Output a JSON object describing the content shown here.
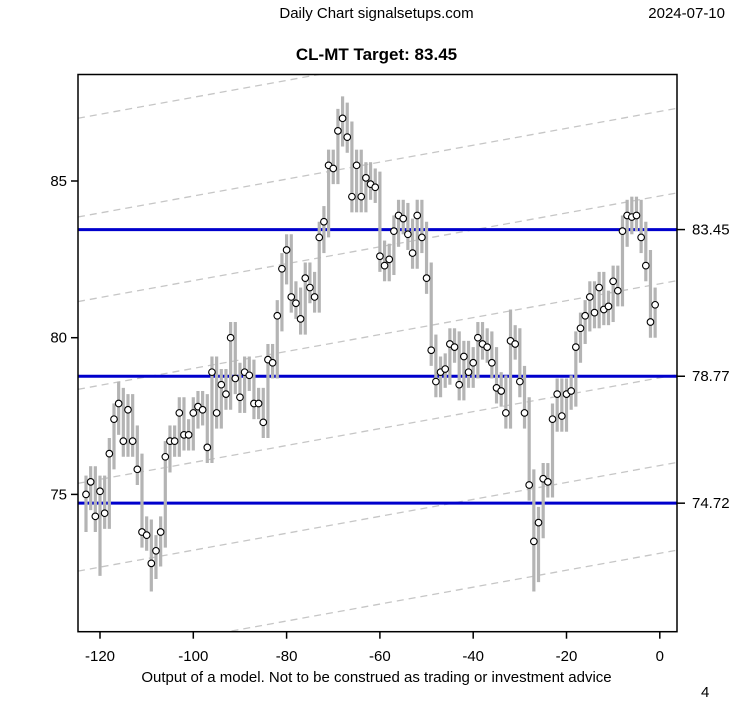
{
  "header": {
    "left_title": "Daily Chart signalsetups.com",
    "date": "2024-07-10"
  },
  "title": "CL-MT Target: 83.45",
  "footer": {
    "caption": "Output of a model. Not to be construed as trading or investment advice",
    "page_number": "4"
  },
  "chart_data": {
    "type": "bar",
    "subtype": "high-low-close daily price bars with close marked by open circle",
    "title": "CL-MT Target: 83.45",
    "xlabel": "",
    "ylabel": "",
    "x_ticks": [
      -120,
      -100,
      -80,
      -60,
      -40,
      -20,
      0
    ],
    "y_ticks": [
      75,
      80,
      85
    ],
    "xlim": [
      -124.8,
      3.6
    ],
    "ylim": [
      70.6,
      88.4
    ],
    "grid": false,
    "colors": {
      "bar": "#b4b4b4",
      "close_marker_stroke": "#000000",
      "close_marker_fill": "#ffffff",
      "target_line": "#0000cc",
      "channel_line": "#c6c6c6",
      "axis": "#000000"
    },
    "hlines": [
      {
        "value": 83.45,
        "label": "83.45",
        "color": "#0000cc"
      },
      {
        "value": 78.77,
        "label": "78.77",
        "color": "#0000cc"
      },
      {
        "value": 74.72,
        "label": "74.72",
        "color": "#0000cc"
      }
    ],
    "channel_lines": {
      "style": "dashed",
      "slope_per_day": 0.027,
      "anchor_day": -60,
      "anchor_values": [
        88.75,
        85.6,
        82.9,
        80.1,
        77.1,
        74.3,
        71.5
      ]
    },
    "bars_format": [
      "day",
      "low",
      "high",
      "close"
    ],
    "bars": [
      [
        -123,
        73.8,
        75.6,
        75.0
      ],
      [
        -122,
        74.5,
        75.9,
        75.4
      ],
      [
        -121,
        73.8,
        75.9,
        74.3
      ],
      [
        -120,
        72.4,
        75.6,
        75.1
      ],
      [
        -119,
        73.9,
        75.6,
        74.4
      ],
      [
        -118,
        73.9,
        76.8,
        76.3
      ],
      [
        -117,
        75.8,
        77.9,
        77.4
      ],
      [
        -116,
        76.9,
        78.6,
        77.9
      ],
      [
        -115,
        76.2,
        78.4,
        76.7
      ],
      [
        -114,
        76.2,
        78.2,
        77.7
      ],
      [
        -113,
        76.2,
        78.2,
        76.7
      ],
      [
        -112,
        75.3,
        77.2,
        75.8
      ],
      [
        -111,
        73.3,
        76.3,
        73.8
      ],
      [
        -110,
        73.2,
        74.3,
        73.7
      ],
      [
        -109,
        71.9,
        74.2,
        72.8
      ],
      [
        -108,
        72.3,
        73.7,
        73.2
      ],
      [
        -107,
        72.7,
        74.3,
        73.8
      ],
      [
        -106,
        73.3,
        76.7,
        76.2
      ],
      [
        -105,
        75.7,
        77.2,
        76.7
      ],
      [
        -104,
        76.2,
        77.2,
        76.7
      ],
      [
        -103,
        76.2,
        78.1,
        77.6
      ],
      [
        -102,
        76.4,
        78.1,
        76.9
      ],
      [
        -101,
        76.4,
        77.4,
        76.9
      ],
      [
        -100,
        76.4,
        78.1,
        77.6
      ],
      [
        -99,
        77.1,
        78.3,
        77.8
      ],
      [
        -98,
        77.2,
        78.3,
        77.7
      ],
      [
        -97,
        76.0,
        78.2,
        76.5
      ],
      [
        -96,
        76.0,
        79.4,
        78.9
      ],
      [
        -95,
        77.1,
        79.4,
        77.6
      ],
      [
        -94,
        77.1,
        79.0,
        78.5
      ],
      [
        -93,
        77.7,
        79.0,
        78.2
      ],
      [
        -92,
        77.7,
        80.5,
        80.0
      ],
      [
        -91,
        78.2,
        80.5,
        78.7
      ],
      [
        -90,
        77.6,
        79.2,
        78.1
      ],
      [
        -89,
        77.6,
        79.4,
        78.9
      ],
      [
        -88,
        78.3,
        79.4,
        78.8
      ],
      [
        -87,
        77.4,
        79.3,
        77.9
      ],
      [
        -86,
        77.4,
        78.4,
        77.9
      ],
      [
        -85,
        76.8,
        78.4,
        77.3
      ],
      [
        -84,
        76.8,
        79.8,
        79.3
      ],
      [
        -83,
        78.7,
        79.8,
        79.2
      ],
      [
        -82,
        78.7,
        81.2,
        80.7
      ],
      [
        -81,
        80.2,
        82.7,
        82.2
      ],
      [
        -80,
        81.7,
        83.3,
        82.8
      ],
      [
        -79,
        80.8,
        83.3,
        81.3
      ],
      [
        -78,
        80.6,
        81.8,
        81.1
      ],
      [
        -77,
        80.1,
        81.6,
        80.6
      ],
      [
        -76,
        80.1,
        82.4,
        81.9
      ],
      [
        -75,
        81.1,
        82.4,
        81.6
      ],
      [
        -74,
        80.8,
        82.1,
        81.3
      ],
      [
        -73,
        80.8,
        83.7,
        83.2
      ],
      [
        -72,
        82.7,
        84.2,
        83.7
      ],
      [
        -71,
        83.2,
        86.0,
        85.5
      ],
      [
        -70,
        84.9,
        86.0,
        85.4
      ],
      [
        -69,
        84.9,
        87.3,
        86.6
      ],
      [
        -68,
        86.1,
        87.7,
        87.0
      ],
      [
        -67,
        85.9,
        87.5,
        86.4
      ],
      [
        -66,
        84.0,
        86.9,
        84.5
      ],
      [
        -65,
        84.0,
        86.0,
        85.5
      ],
      [
        -64,
        84.0,
        86.0,
        84.5
      ],
      [
        -63,
        84.0,
        85.6,
        85.1
      ],
      [
        -62,
        84.4,
        85.6,
        84.9
      ],
      [
        -61,
        84.3,
        85.4,
        84.8
      ],
      [
        -60,
        82.1,
        85.3,
        82.6
      ],
      [
        -59,
        81.8,
        83.1,
        82.3
      ],
      [
        -58,
        81.8,
        83.0,
        82.5
      ],
      [
        -57,
        82.0,
        83.9,
        83.4
      ],
      [
        -56,
        82.9,
        84.4,
        83.9
      ],
      [
        -55,
        83.3,
        84.4,
        83.8
      ],
      [
        -54,
        82.8,
        84.3,
        83.3
      ],
      [
        -53,
        82.2,
        83.8,
        82.7
      ],
      [
        -52,
        82.2,
        84.4,
        83.9
      ],
      [
        -51,
        82.7,
        84.4,
        83.2
      ],
      [
        -50,
        81.4,
        83.7,
        81.9
      ],
      [
        -49,
        79.1,
        82.4,
        79.6
      ],
      [
        -48,
        78.1,
        80.1,
        78.6
      ],
      [
        -47,
        78.1,
        79.4,
        78.9
      ],
      [
        -46,
        78.4,
        79.5,
        79.0
      ],
      [
        -45,
        78.5,
        80.3,
        79.8
      ],
      [
        -44,
        79.2,
        80.3,
        79.7
      ],
      [
        -43,
        78.0,
        80.2,
        78.5
      ],
      [
        -42,
        78.0,
        79.9,
        79.4
      ],
      [
        -41,
        78.4,
        79.9,
        78.9
      ],
      [
        -40,
        78.4,
        79.7,
        79.2
      ],
      [
        -39,
        78.7,
        80.5,
        80.0
      ],
      [
        -38,
        79.3,
        80.5,
        79.8
      ],
      [
        -37,
        79.2,
        80.3,
        79.7
      ],
      [
        -36,
        78.7,
        80.2,
        79.2
      ],
      [
        -35,
        77.9,
        79.7,
        78.4
      ],
      [
        -34,
        77.8,
        78.9,
        78.3
      ],
      [
        -33,
        77.1,
        78.8,
        77.6
      ],
      [
        -32,
        77.1,
        80.9,
        79.9
      ],
      [
        -31,
        79.3,
        80.4,
        79.8
      ],
      [
        -30,
        78.1,
        80.3,
        78.6
      ],
      [
        -29,
        77.1,
        79.1,
        77.6
      ],
      [
        -28,
        74.8,
        78.1,
        75.3
      ],
      [
        -27,
        71.9,
        75.8,
        73.5
      ],
      [
        -26,
        72.2,
        74.6,
        74.1
      ],
      [
        -25,
        73.6,
        76.0,
        75.5
      ],
      [
        -24,
        74.9,
        76.0,
        75.4
      ],
      [
        -23,
        74.9,
        77.9,
        77.4
      ],
      [
        -22,
        77.0,
        78.7,
        78.2
      ],
      [
        -21,
        77.0,
        78.7,
        77.5
      ],
      [
        -20,
        77.0,
        78.7,
        78.2
      ],
      [
        -19,
        77.7,
        78.8,
        78.3
      ],
      [
        -18,
        77.8,
        80.2,
        79.7
      ],
      [
        -17,
        79.2,
        80.8,
        80.3
      ],
      [
        -16,
        79.8,
        81.2,
        80.7
      ],
      [
        -15,
        80.2,
        81.8,
        81.3
      ],
      [
        -14,
        80.3,
        81.8,
        80.8
      ],
      [
        -13,
        80.3,
        82.1,
        81.6
      ],
      [
        -12,
        80.4,
        82.1,
        80.9
      ],
      [
        -11,
        80.4,
        81.5,
        81.0
      ],
      [
        -10,
        80.5,
        82.3,
        81.8
      ],
      [
        -9,
        81.0,
        82.3,
        81.5
      ],
      [
        -8,
        81.0,
        83.9,
        83.4
      ],
      [
        -7,
        82.9,
        84.4,
        83.9
      ],
      [
        -6,
        83.3,
        84.5,
        83.85
      ],
      [
        -5,
        83.4,
        84.5,
        83.9
      ],
      [
        -4,
        82.7,
        84.4,
        83.2
      ],
      [
        -3,
        81.8,
        83.7,
        82.3
      ],
      [
        -2,
        80.0,
        82.8,
        80.5
      ],
      [
        -1,
        80.0,
        81.6,
        81.05
      ]
    ]
  }
}
